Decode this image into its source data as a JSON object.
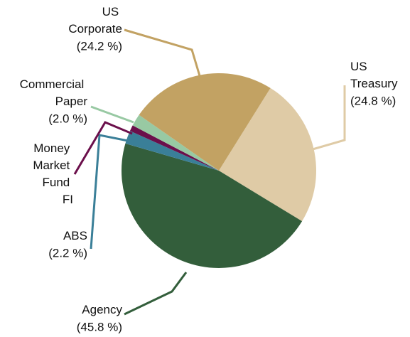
{
  "chart_data": {
    "type": "pie",
    "categories": [
      "US Treasury",
      "Agency",
      "ABS",
      "Money Market Fund FI",
      "Commercial Paper",
      "US Corporate"
    ],
    "values": [
      24.8,
      45.8,
      2.2,
      1.0,
      2.0,
      24.2
    ],
    "value_labels": [
      "(24.8 %)",
      "(45.8 %)",
      "(2.2 %)",
      null,
      "(2.0 %)",
      "(24.2 %)"
    ],
    "colors": [
      "#dfcba6",
      "#335e3b",
      "#3a7f98",
      "#6b0f4b",
      "#98c9a3",
      "#c2a263"
    ]
  }
}
